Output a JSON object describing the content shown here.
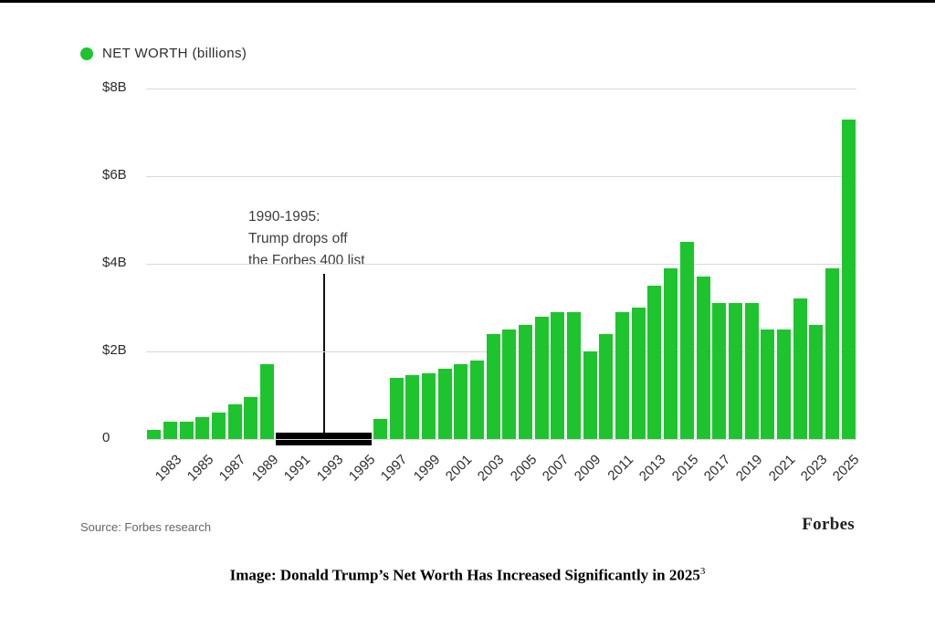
{
  "page": {
    "caption": "Image: Donald Trump’s Net Worth Has Increased Significantly in 2025",
    "caption_superscript": "3"
  },
  "chart": {
    "legend_label": "NET WORTH (billions)",
    "source": "Source: Forbes research",
    "brand": "Forbes",
    "annotation_lines": [
      "1990-1995:",
      "Trump drops off",
      "the Forbes 400 list"
    ],
    "colors": {
      "bar": "#1ec42e",
      "gap_bar": "#000000",
      "gridline": "#d9d9d9",
      "text": "#2b2b2b"
    }
  },
  "chart_data": {
    "type": "bar",
    "title": "NET WORTH (billions)",
    "years": [
      1982,
      1983,
      1984,
      1985,
      1986,
      1987,
      1988,
      1989,
      1990,
      1991,
      1992,
      1993,
      1994,
      1995,
      1996,
      1997,
      1998,
      1999,
      2000,
      2001,
      2002,
      2003,
      2004,
      2005,
      2006,
      2007,
      2008,
      2009,
      2010,
      2011,
      2012,
      2013,
      2014,
      2015,
      2016,
      2017,
      2018,
      2019,
      2020,
      2021,
      2022,
      2023,
      2024,
      2025
    ],
    "values": [
      0.2,
      0.4,
      0.4,
      0.5,
      0.6,
      0.8,
      0.95,
      1.7,
      null,
      null,
      null,
      null,
      null,
      null,
      0.45,
      1.4,
      1.45,
      1.5,
      1.6,
      1.7,
      1.8,
      2.4,
      2.5,
      2.6,
      2.8,
      2.9,
      2.9,
      2.0,
      2.4,
      2.9,
      3.0,
      3.5,
      3.9,
      4.5,
      3.7,
      3.1,
      3.1,
      3.1,
      2.5,
      2.5,
      3.2,
      2.6,
      3.9,
      7.3
    ],
    "gap_years": [
      1990,
      1995
    ],
    "gap_meaning": "Trump drops off the Forbes 400 list",
    "ylim": [
      0,
      8
    ],
    "yticks": [
      0,
      2,
      4,
      6,
      8
    ],
    "ytick_labels": [
      "0",
      "$2B",
      "$4B",
      "$6B",
      "$8B"
    ],
    "xtick_labels": [
      "1983",
      "1985",
      "1987",
      "1989",
      "1991",
      "1993",
      "1995",
      "1997",
      "1999",
      "2001",
      "2003",
      "2005",
      "2007",
      "2009",
      "2011",
      "2013",
      "2015",
      "2017",
      "2019",
      "2021",
      "2023",
      "2025"
    ],
    "legend_position": "top-left",
    "grid": true,
    "annotation": "1990-1995: Trump drops off the Forbes 400 list"
  }
}
